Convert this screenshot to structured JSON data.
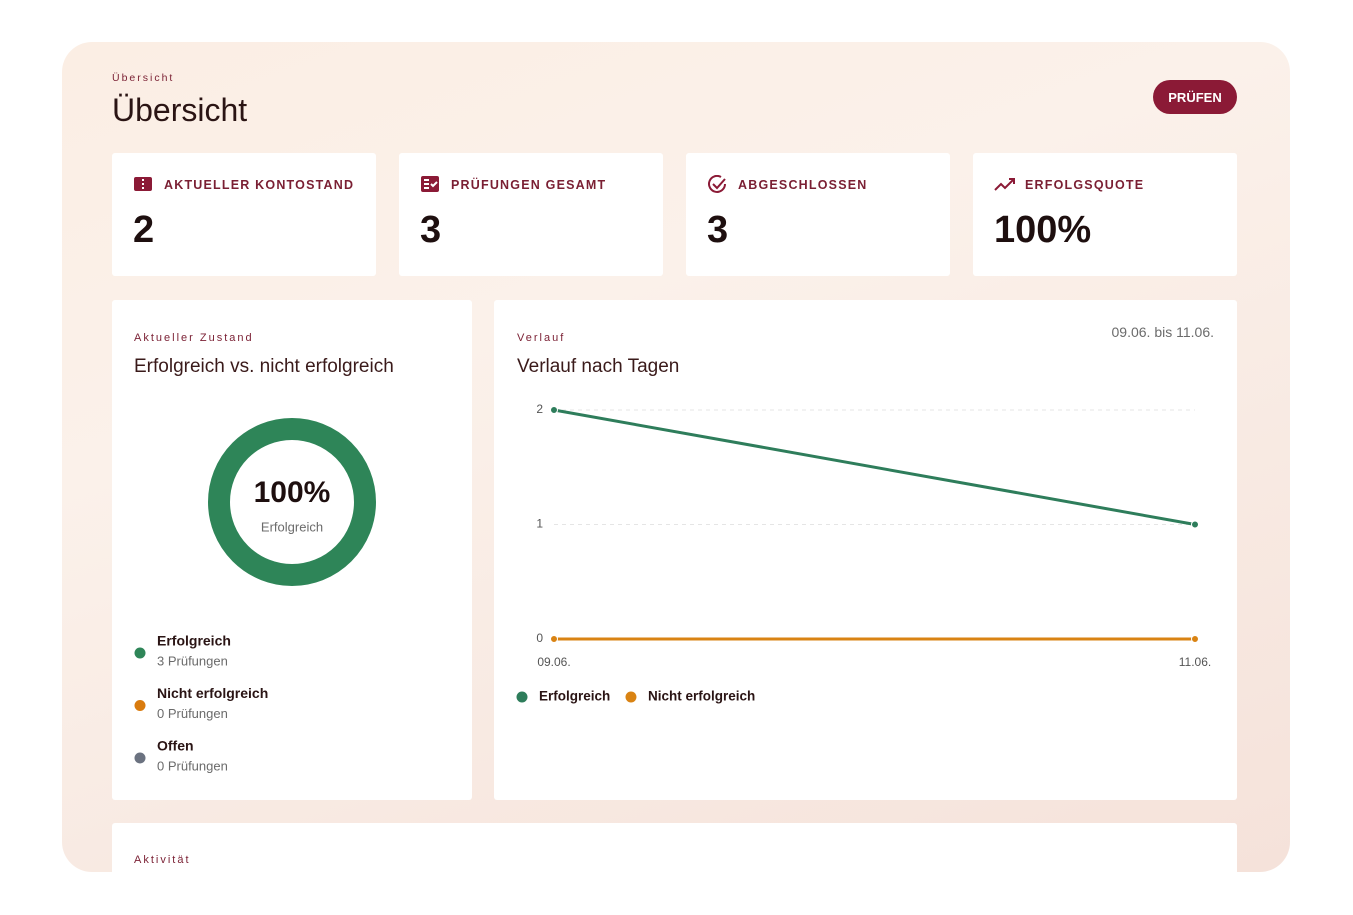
{
  "header": {
    "eyebrow": "Übersicht",
    "title": "Übersicht",
    "button": "PRÜFEN"
  },
  "stats": [
    {
      "label": "AKTUELLER KONTOSTAND",
      "value": "2"
    },
    {
      "label": "PRÜFUNGEN GESAMT",
      "value": "3"
    },
    {
      "label": "ABGESCHLOSSEN",
      "value": "3"
    },
    {
      "label": "ERFOLGSQUOTE",
      "value": "100%"
    }
  ],
  "state_card": {
    "eyebrow": "Aktueller Zustand",
    "title": "Erfolgreich vs. nicht erfolgreich",
    "chart": {
      "type": "donut",
      "center_value": "100%",
      "center_label": "Erfolgreich",
      "series": [
        {
          "name": "Erfolgreich",
          "color": "#2e8558",
          "value": 3,
          "value_label": "3 Prüfungen"
        },
        {
          "name": "Nicht erfolgreich",
          "color": "#d97b0e",
          "value": 0,
          "value_label": "0 Prüfungen"
        },
        {
          "name": "Offen",
          "color": "#6b7280",
          "value": 0,
          "value_label": "0 Prüfungen"
        }
      ]
    }
  },
  "trend_card": {
    "eyebrow": "Verlauf",
    "title": "Verlauf nach Tagen",
    "range": "09.06. bis 11.06.",
    "chart": {
      "type": "line",
      "categories": [
        "09.06.",
        "11.06."
      ],
      "series": [
        {
          "name": "Erfolgreich",
          "color": "#2e7d5b",
          "values": [
            2,
            1
          ]
        },
        {
          "name": "Nicht erfolgreich",
          "color": "#d98313",
          "values": [
            0,
            0
          ]
        }
      ],
      "ylim": [
        0,
        2
      ],
      "yticks": [
        0,
        1,
        2
      ],
      "grid": true
    }
  },
  "activity": {
    "eyebrow": "Aktivität"
  }
}
